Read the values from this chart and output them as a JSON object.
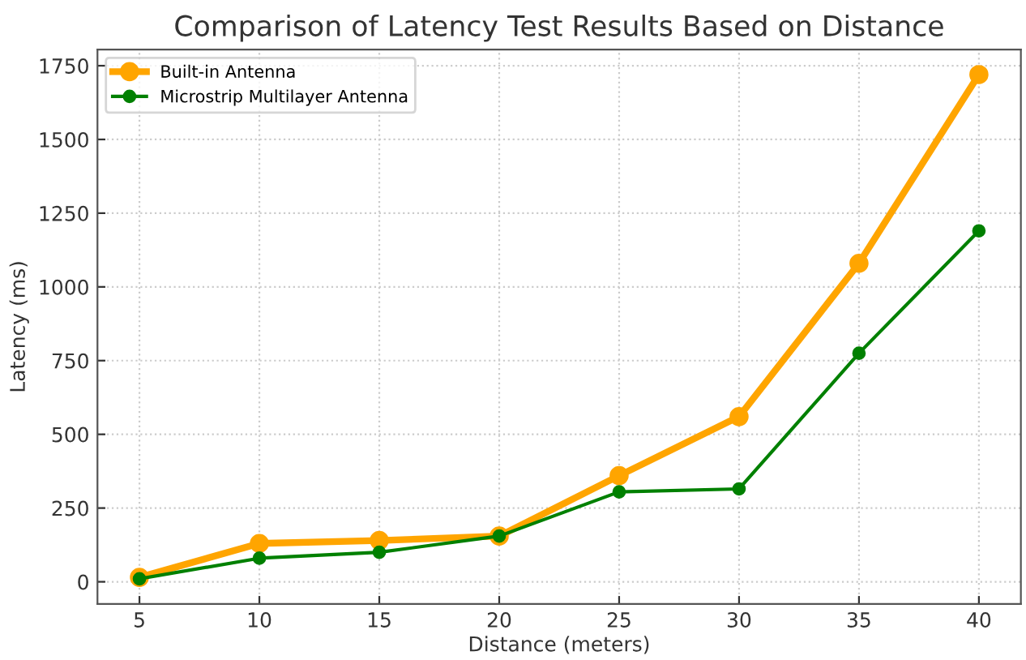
{
  "chart_data": {
    "type": "line",
    "title": "Comparison of Latency Test Results Based on Distance",
    "xlabel": "Distance (meters)",
    "ylabel": "Latency (ms)",
    "x": [
      5,
      10,
      15,
      20,
      25,
      30,
      35,
      40
    ],
    "series": [
      {
        "name": "Built-in Antenna",
        "color": "#ffa500",
        "values": [
          15,
          130,
          140,
          155,
          360,
          560,
          1080,
          1720
        ]
      },
      {
        "name": "Microstrip Multilayer Antenna",
        "color": "#008000",
        "values": [
          10,
          80,
          100,
          155,
          305,
          315,
          775,
          1190
        ]
      }
    ],
    "xlim": [
      3.25,
      41.75
    ],
    "xticks": [
      5,
      10,
      15,
      20,
      25,
      30,
      35,
      40
    ],
    "ylim": [
      -75,
      1805
    ],
    "yticks": [
      0,
      250,
      500,
      750,
      1000,
      1250,
      1500,
      1750
    ],
    "grid": true,
    "legend": "top left",
    "marker": "circle",
    "line_style": "solid"
  }
}
